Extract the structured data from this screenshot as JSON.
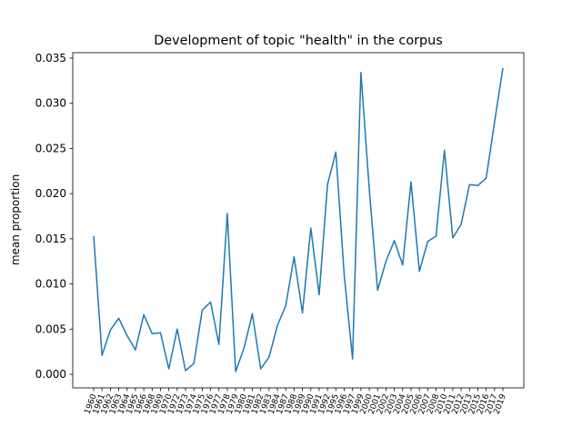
{
  "chart_data": {
    "type": "line",
    "title": "Development of topic \"health\" in the corpus",
    "ylabel": "mean proportion",
    "categories": [
      "1960",
      "1961",
      "1962",
      "1963",
      "1964",
      "1965",
      "1966",
      "1968",
      "1969",
      "1970",
      "1972",
      "1973",
      "1974",
      "1975",
      "1976",
      "1977",
      "1978",
      "1979",
      "1980",
      "1981",
      "1982",
      "1983",
      "1984",
      "1987",
      "1988",
      "1989",
      "1990",
      "1991",
      "1992",
      "1995",
      "1996",
      "1997",
      "1999",
      "2000",
      "2001",
      "2002",
      "2003",
      "2004",
      "2005",
      "2006",
      "2007",
      "2008",
      "2010",
      "2011",
      "2012",
      "2013",
      "2015",
      "2016",
      "2017",
      "2019"
    ],
    "series": [
      {
        "name": "health",
        "color": "#1f77b4",
        "values": [
          0.0153,
          0.0021,
          0.0049,
          0.0062,
          0.0043,
          0.0027,
          0.0066,
          0.0045,
          0.0046,
          0.0006,
          0.005,
          0.0004,
          0.0012,
          0.0071,
          0.008,
          0.0033,
          0.0178,
          0.0003,
          0.0029,
          0.0067,
          0.0006,
          0.0019,
          0.0054,
          0.0076,
          0.013,
          0.0068,
          0.0162,
          0.0088,
          0.021,
          0.0246,
          0.011,
          0.0017,
          0.0334,
          0.0205,
          0.0093,
          0.0125,
          0.0148,
          0.0121,
          0.0213,
          0.0114,
          0.0147,
          0.0153,
          0.0248,
          0.0151,
          0.0166,
          0.021,
          0.0209,
          0.0217,
          0.0279,
          0.0339
        ]
      }
    ],
    "ylim": [
      -0.0015,
      0.0356
    ],
    "yticks": [
      {
        "value": 0,
        "label": "0.000"
      },
      {
        "value": 0.005,
        "label": "0.005"
      },
      {
        "value": 0.01,
        "label": "0.010"
      },
      {
        "value": 0.015,
        "label": "0.015"
      },
      {
        "value": 0.02,
        "label": "0.020"
      },
      {
        "value": 0.025,
        "label": "0.025"
      },
      {
        "value": 0.03,
        "label": "0.030"
      },
      {
        "value": 0.035,
        "label": "0.035"
      }
    ],
    "grid": false
  }
}
